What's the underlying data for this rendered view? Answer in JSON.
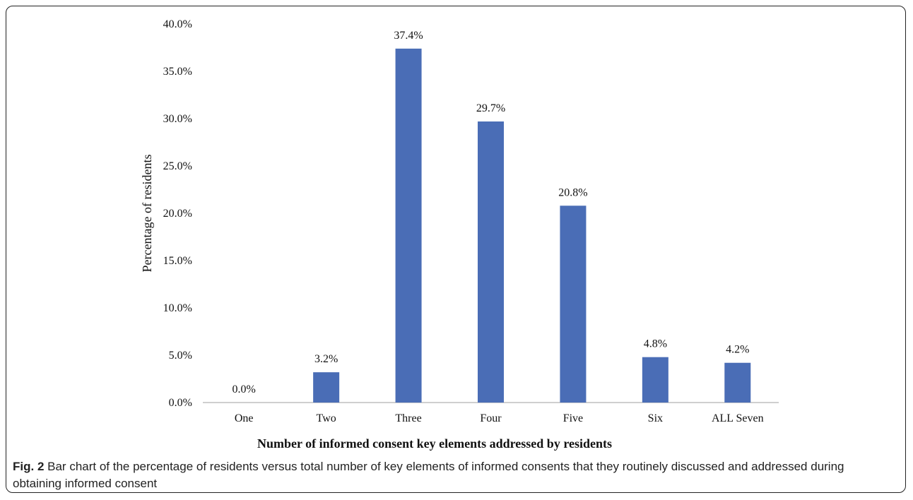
{
  "chart_data": {
    "type": "bar",
    "categories": [
      "One",
      "Two",
      "Three",
      "Four",
      "Five",
      "Six",
      "ALL Seven"
    ],
    "values": [
      0.0,
      3.2,
      37.4,
      29.7,
      20.8,
      4.8,
      4.2
    ],
    "data_labels": [
      "0.0%",
      "3.2%",
      "37.4%",
      "29.7%",
      "20.8%",
      "4.8%",
      "4.2%"
    ],
    "y_ticks": [
      "0.0%",
      "5.0%",
      "10.0%",
      "15.0%",
      "20.0%",
      "25.0%",
      "30.0%",
      "35.0%",
      "40.0%"
    ],
    "ylim": [
      0,
      40
    ],
    "ylabel": "Percentage of residents",
    "xlabel": "Number of informed consent key elements addressed by residents",
    "bar_color": "#4a6db6",
    "grid": false,
    "legend": "none"
  },
  "caption": {
    "label": "Fig. 2",
    "text": "Bar chart of the percentage of residents versus total number of key elements of informed consents that they routinely discussed and addressed during obtaining informed consent"
  }
}
